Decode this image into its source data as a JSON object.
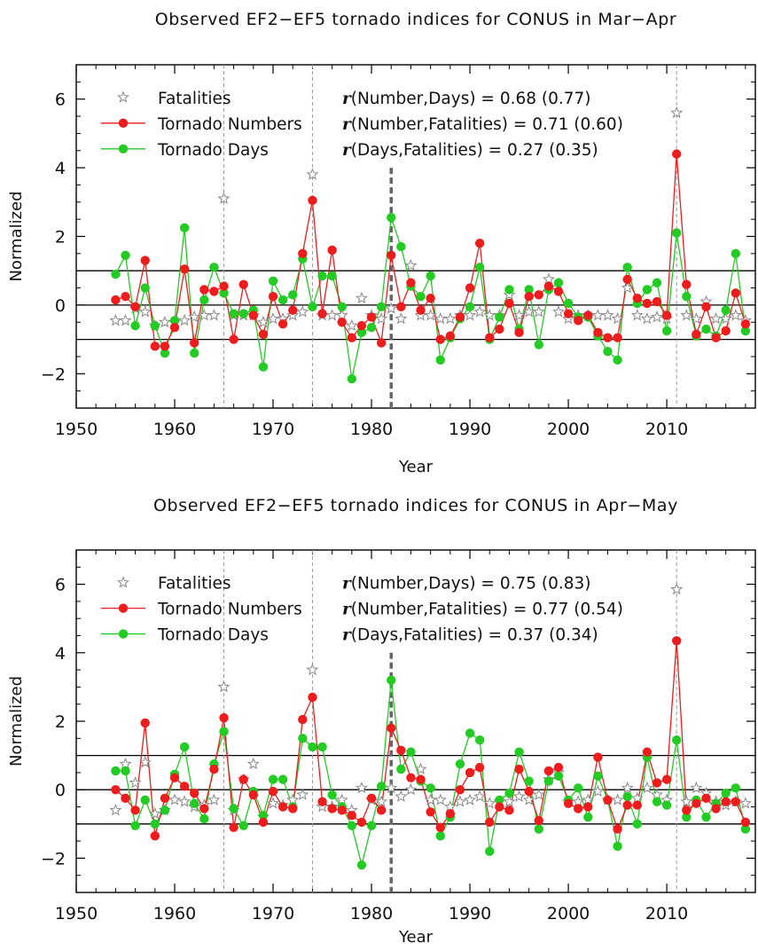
{
  "chart_data": [
    {
      "type": "line",
      "title": "Observed EF2−EF5 tornado indices for CONUS in Mar−Apr",
      "xlabel": "Year",
      "ylabel": "Normalized",
      "xlim": [
        1950,
        2019
      ],
      "ylim": [
        -3,
        7
      ],
      "xticks": [
        1950,
        1960,
        1970,
        1980,
        1990,
        2000,
        2010
      ],
      "xtick_labels": [
        "1950",
        "1960",
        "1970",
        "1980",
        "1990",
        "2000",
        "2010"
      ],
      "yticks": [
        -2,
        0,
        2,
        4,
        6
      ],
      "ytick_labels": [
        "−2",
        "0",
        "2",
        "4",
        "6"
      ],
      "hlines": [
        -1,
        0,
        1
      ],
      "vlines_thin": [
        1965,
        1974,
        2011
      ],
      "vline_thick": 1982,
      "legend_position": "top-left",
      "legend": {
        "fatalities": "Fatalities",
        "numbers": "Tornado Numbers",
        "days": "Tornado Days"
      },
      "annotations": [
        {
          "r": "r",
          "text": "(Number,Days) = 0.68 (0.77)"
        },
        {
          "r": "r",
          "text": "(Number,Fatalities) = 0.71 (0.60)"
        },
        {
          "r": "r",
          "text": "(Days,Fatalities) = 0.27 (0.35)"
        }
      ],
      "x": [
        1954,
        1955,
        1956,
        1957,
        1958,
        1959,
        1960,
        1961,
        1962,
        1963,
        1964,
        1965,
        1966,
        1967,
        1968,
        1969,
        1970,
        1971,
        1972,
        1973,
        1974,
        1975,
        1976,
        1977,
        1978,
        1979,
        1980,
        1981,
        1982,
        1983,
        1984,
        1985,
        1986,
        1987,
        1988,
        1989,
        1990,
        1991,
        1992,
        1993,
        1994,
        1995,
        1996,
        1997,
        1998,
        1999,
        2000,
        2001,
        2002,
        2003,
        2004,
        2005,
        2006,
        2007,
        2008,
        2009,
        2010,
        2011,
        2012,
        2013,
        2014,
        2015,
        2016,
        2017,
        2018
      ],
      "series": [
        {
          "name": "Fatalities",
          "color": "#888888",
          "marker": "star",
          "values": [
            -0.45,
            -0.45,
            -0.1,
            -0.2,
            -0.6,
            -0.5,
            -0.5,
            -0.45,
            -0.35,
            -0.3,
            -0.3,
            3.1,
            -0.3,
            -0.3,
            -0.3,
            -0.5,
            -0.4,
            -0.4,
            -0.3,
            -0.2,
            3.8,
            -0.3,
            -0.3,
            -0.3,
            -0.6,
            0.2,
            -0.3,
            -0.4,
            -0.1,
            -0.4,
            1.15,
            -0.3,
            -0.3,
            -0.4,
            -0.4,
            -0.3,
            -0.3,
            -0.2,
            -0.3,
            -0.3,
            0.3,
            -0.3,
            -0.2,
            -0.2,
            0.75,
            -0.2,
            -0.4,
            -0.3,
            -0.3,
            -0.3,
            -0.3,
            -0.4,
            0.5,
            -0.3,
            -0.4,
            -0.35,
            -0.4,
            5.6,
            -0.3,
            -0.4,
            0.1,
            -0.4,
            -0.4,
            -0.3,
            -0.45
          ]
        },
        {
          "name": "Tornado Numbers",
          "color": "#ee1c1c",
          "marker": "circle",
          "values": [
            0.15,
            0.25,
            -0.05,
            1.3,
            -1.2,
            -1.2,
            -0.65,
            1.05,
            -1.1,
            0.45,
            0.4,
            0.55,
            -1.0,
            0.6,
            -0.3,
            -0.85,
            0.25,
            -0.55,
            -0.15,
            1.5,
            3.05,
            -0.25,
            1.6,
            -0.5,
            -0.95,
            -0.6,
            -0.35,
            -1.1,
            1.45,
            -0.05,
            0.65,
            -0.15,
            0.2,
            -1.0,
            -0.9,
            -0.35,
            0.5,
            1.8,
            -0.95,
            -0.7,
            0.05,
            -0.8,
            0.25,
            0.3,
            0.55,
            0.4,
            -0.25,
            -0.45,
            -0.3,
            -0.8,
            -0.95,
            -0.95,
            0.75,
            0.2,
            0.05,
            0.1,
            -0.3,
            4.4,
            0.6,
            -0.85,
            -0.05,
            -0.95,
            -0.75,
            0.35,
            -0.55
          ]
        },
        {
          "name": "Tornado Days",
          "color": "#22cc22",
          "marker": "circle",
          "values": [
            0.9,
            1.45,
            -0.6,
            0.5,
            -0.6,
            -1.4,
            -0.45,
            2.25,
            -1.4,
            0.15,
            1.1,
            0.35,
            -0.25,
            -0.25,
            -0.15,
            -1.8,
            0.7,
            0.15,
            0.3,
            1.35,
            -0.05,
            0.85,
            0.85,
            -0.05,
            -2.15,
            -0.8,
            -0.65,
            -0.05,
            2.55,
            1.7,
            0.55,
            0.25,
            0.85,
            -1.6,
            -0.95,
            -0.4,
            -0.05,
            1.1,
            -1.0,
            -0.35,
            0.45,
            -0.7,
            0.45,
            -1.15,
            0.45,
            0.65,
            0.05,
            -0.35,
            -0.35,
            -0.9,
            -1.35,
            -1.6,
            1.1,
            0.05,
            0.45,
            0.65,
            -0.75,
            2.1,
            0.25,
            -0.9,
            -0.7,
            -0.9,
            -0.15,
            1.5,
            -0.75
          ]
        }
      ]
    },
    {
      "type": "line",
      "title": "Observed EF2−EF5 tornado indices for CONUS in Apr−May",
      "xlabel": "Year",
      "ylabel": "Normalized",
      "xlim": [
        1950,
        2019
      ],
      "ylim": [
        -3,
        7
      ],
      "xticks": [
        1950,
        1960,
        1970,
        1980,
        1990,
        2000,
        2010
      ],
      "xtick_labels": [
        "1950",
        "1960",
        "1970",
        "1980",
        "1990",
        "2000",
        "2010"
      ],
      "yticks": [
        -2,
        0,
        2,
        4,
        6
      ],
      "ytick_labels": [
        "−2",
        "0",
        "2",
        "4",
        "6"
      ],
      "hlines": [
        -1,
        0,
        1
      ],
      "vlines_thin": [
        1965,
        1974,
        2011
      ],
      "vline_thick": 1982,
      "legend_position": "top-left",
      "legend": {
        "fatalities": "Fatalities",
        "numbers": "Tornado Numbers",
        "days": "Tornado Days"
      },
      "annotations": [
        {
          "r": "r",
          "text": "(Number,Days) = 0.75 (0.83)"
        },
        {
          "r": "r",
          "text": "(Number,Fatalities) = 0.77 (0.54)"
        },
        {
          "r": "r",
          "text": "(Days,Fatalities) = 0.37 (0.34)"
        }
      ],
      "x": [
        1954,
        1955,
        1956,
        1957,
        1958,
        1959,
        1960,
        1961,
        1962,
        1963,
        1964,
        1965,
        1966,
        1967,
        1968,
        1969,
        1970,
        1971,
        1972,
        1973,
        1974,
        1975,
        1976,
        1977,
        1978,
        1979,
        1980,
        1981,
        1982,
        1983,
        1984,
        1985,
        1986,
        1987,
        1988,
        1989,
        1990,
        1991,
        1992,
        1993,
        1994,
        1995,
        1996,
        1997,
        1998,
        1999,
        2000,
        2001,
        2002,
        2003,
        2004,
        2005,
        2006,
        2007,
        2008,
        2009,
        2010,
        2011,
        2012,
        2013,
        2014,
        2015,
        2016,
        2017,
        2018
      ],
      "series": [
        {
          "name": "Fatalities",
          "color": "#888888",
          "marker": "star",
          "values": [
            -0.6,
            0.75,
            0.2,
            0.8,
            -0.7,
            -0.6,
            -0.3,
            -0.35,
            -0.5,
            -0.45,
            -0.3,
            3.0,
            -0.6,
            0.3,
            0.75,
            -0.8,
            -0.4,
            -0.45,
            -0.3,
            -0.15,
            3.5,
            -0.5,
            -0.5,
            -0.3,
            -0.6,
            0.05,
            -0.3,
            -0.35,
            0.05,
            -0.2,
            0.0,
            0.6,
            -0.3,
            -0.3,
            -0.5,
            -0.35,
            -0.3,
            -0.2,
            -0.4,
            -0.35,
            -0.35,
            -0.2,
            -0.3,
            -0.15,
            0.3,
            0.5,
            -0.35,
            -0.35,
            -0.3,
            -0.05,
            -0.3,
            -0.3,
            0.05,
            -0.25,
            0.05,
            -0.15,
            -0.3,
            5.85,
            -0.35,
            0.05,
            -0.1,
            -0.35,
            -0.45,
            -0.35,
            -0.4
          ]
        },
        {
          "name": "Tornado Numbers",
          "color": "#ee1c1c",
          "marker": "circle",
          "values": [
            0.0,
            -0.25,
            -0.6,
            1.95,
            -1.35,
            -0.25,
            0.35,
            0.1,
            -0.1,
            -0.55,
            0.6,
            2.1,
            -1.1,
            0.3,
            -0.15,
            -0.95,
            -0.05,
            -0.5,
            -0.55,
            2.05,
            2.7,
            -0.35,
            -0.55,
            -0.6,
            -0.75,
            -0.95,
            -0.25,
            -0.6,
            1.8,
            1.15,
            0.35,
            0.3,
            -0.65,
            -1.1,
            -0.7,
            0.0,
            0.5,
            0.65,
            -0.95,
            -0.5,
            -0.6,
            0.6,
            -0.05,
            -0.9,
            0.55,
            0.65,
            -0.4,
            -0.55,
            -0.5,
            0.95,
            -0.3,
            -1.15,
            -0.45,
            -0.45,
            1.1,
            0.2,
            0.3,
            4.35,
            -0.6,
            -0.4,
            -0.25,
            -0.55,
            -0.35,
            -0.35,
            -0.95
          ]
        },
        {
          "name": "Tornado Days",
          "color": "#22cc22",
          "marker": "circle",
          "values": [
            0.55,
            0.55,
            -1.05,
            -0.3,
            -1.0,
            -0.6,
            0.45,
            1.25,
            -0.4,
            -0.85,
            0.75,
            1.7,
            -0.55,
            -1.05,
            -0.05,
            -0.75,
            0.3,
            0.3,
            -0.5,
            1.5,
            1.25,
            1.25,
            -0.15,
            -0.5,
            -1.05,
            -2.2,
            -1.05,
            0.1,
            3.2,
            0.6,
            1.1,
            0.25,
            0.05,
            -1.35,
            -0.8,
            0.75,
            1.65,
            1.45,
            -1.8,
            -0.3,
            -0.1,
            1.1,
            0.25,
            -1.15,
            0.25,
            0.4,
            -0.3,
            0.05,
            -0.8,
            0.4,
            -0.3,
            -1.65,
            -0.2,
            -1.0,
            0.95,
            -0.35,
            -0.45,
            1.45,
            -0.8,
            -0.3,
            -0.8,
            -0.4,
            -0.1,
            0.05,
            -1.15
          ]
        }
      ]
    }
  ]
}
